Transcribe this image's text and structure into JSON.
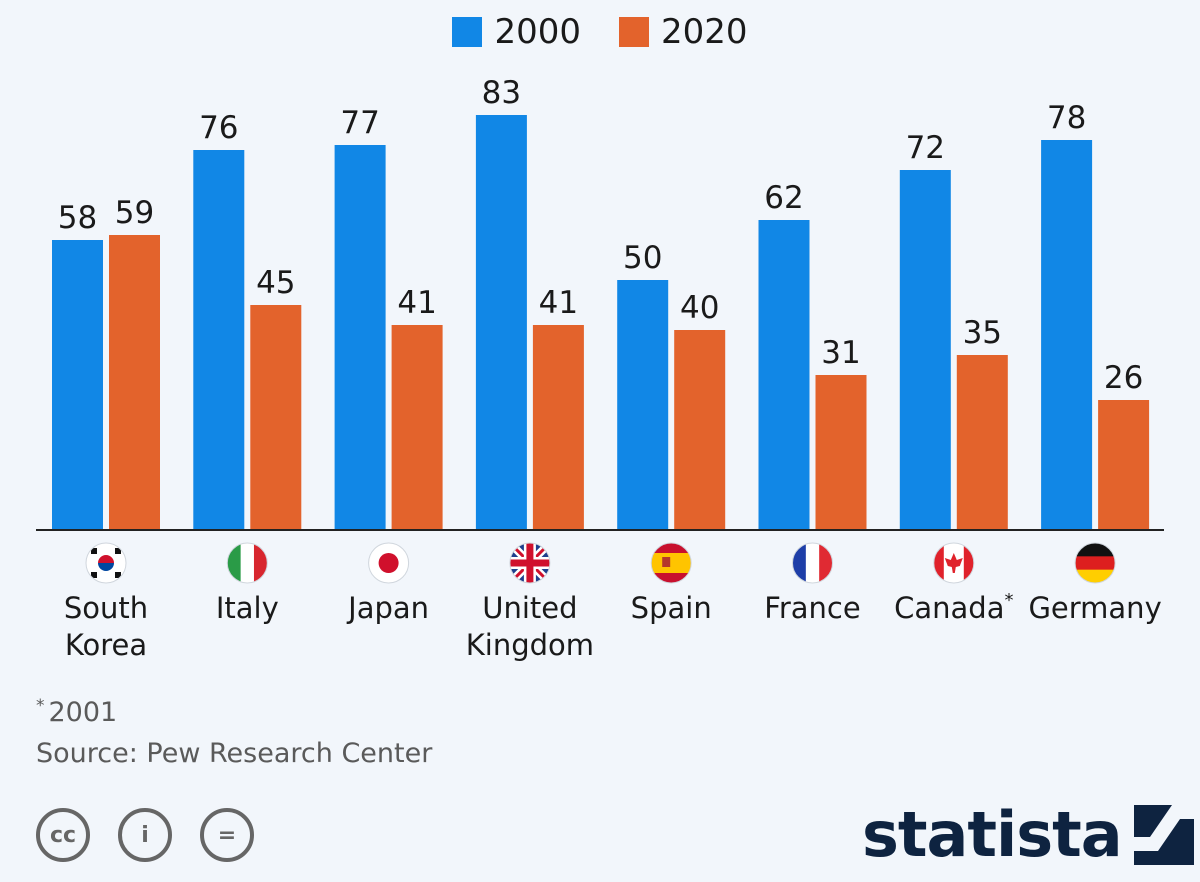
{
  "chart_data": {
    "type": "bar",
    "categories": [
      "South Korea",
      "Italy",
      "Japan",
      "United Kingdom",
      "Spain",
      "France",
      "Canada",
      "Germany"
    ],
    "category_lines": [
      [
        "South",
        "Korea"
      ],
      [
        "Italy"
      ],
      [
        "Japan"
      ],
      [
        "United",
        "Kingdom"
      ],
      [
        "Spain"
      ],
      [
        "France"
      ],
      [
        "Canada"
      ],
      [
        "Germany"
      ]
    ],
    "category_marks": [
      "",
      "",
      "",
      "",
      "",
      "",
      "*",
      ""
    ],
    "series": [
      {
        "name": "2000",
        "values": [
          58,
          76,
          77,
          83,
          50,
          62,
          72,
          78
        ],
        "color": "#1187e6"
      },
      {
        "name": "2020",
        "values": [
          59,
          45,
          41,
          41,
          40,
          31,
          35,
          26
        ],
        "color": "#e3632c"
      }
    ],
    "ylim": [
      0,
      90
    ],
    "grid": false,
    "legend": "top-center",
    "flags": [
      "south-korea-flag-icon",
      "italy-flag-icon",
      "japan-flag-icon",
      "uk-flag-icon",
      "spain-flag-icon",
      "france-flag-icon",
      "canada-flag-icon",
      "germany-flag-icon"
    ]
  },
  "footnote": {
    "mark": "*",
    "text": "2001"
  },
  "source": "Source: Pew Research Center",
  "brand": "statista",
  "license_icons": [
    "cc-icon",
    "attribution-icon",
    "no-derivatives-icon"
  ],
  "license_glyphs": [
    "cc",
    "i",
    "="
  ]
}
